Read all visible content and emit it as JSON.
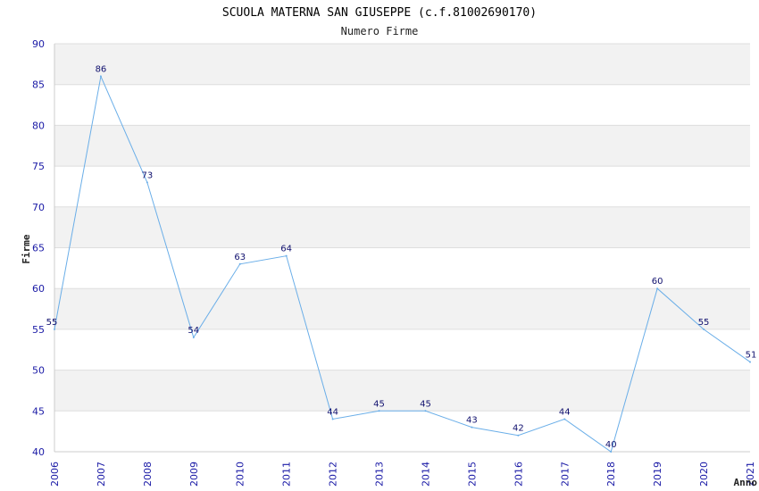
{
  "chart_data": {
    "type": "line",
    "title": "SCUOLA MATERNA SAN GIUSEPPE (c.f.81002690170)",
    "subtitle": "Numero Firme",
    "xlabel": "Anno",
    "ylabel": "Firme",
    "ylim": [
      40,
      90
    ],
    "yticks": [
      40,
      45,
      50,
      55,
      60,
      65,
      70,
      75,
      80,
      85,
      90
    ],
    "x": [
      "2006",
      "2007",
      "2008",
      "2009",
      "2010",
      "2011",
      "2012",
      "2013",
      "2014",
      "2015",
      "2016",
      "2017",
      "2018",
      "2019",
      "2020",
      "2021"
    ],
    "series": [
      {
        "values": [
          55,
          86,
          73,
          54,
          63,
          64,
          44,
          45,
          45,
          43,
          42,
          44,
          40,
          60,
          55,
          51
        ]
      }
    ],
    "grid": "horizontal alternating bands",
    "colors": {
      "line": "#6aaee8",
      "band": "#f2f2f2",
      "tick_text": "#1a1aa6",
      "data_label": "#10106e"
    }
  }
}
